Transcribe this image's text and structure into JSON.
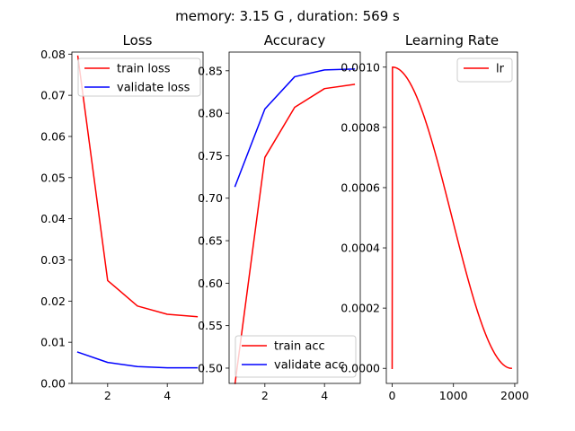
{
  "figure": {
    "suptitle": "memory: 3.15 G , duration: 569 s"
  },
  "chart_data": [
    {
      "type": "line",
      "title": "Loss",
      "xlabel": "",
      "ylabel": "",
      "xlim": [
        0.8,
        5.2
      ],
      "ylim": [
        0.0,
        0.0805
      ],
      "xticks": [
        2,
        4
      ],
      "xtick_labels": [
        "2",
        "4"
      ],
      "yticks": [
        0.0,
        0.01,
        0.02,
        0.03,
        0.04,
        0.05,
        0.06,
        0.07,
        0.08
      ],
      "ytick_labels": [
        "0.00",
        "0.01",
        "0.02",
        "0.03",
        "0.04",
        "0.05",
        "0.06",
        "0.07",
        "0.08"
      ],
      "grid": false,
      "legend": "top-right",
      "series": [
        {
          "name": "train loss",
          "color": "#ff0000",
          "x": [
            1,
            2,
            3,
            4,
            5
          ],
          "y": [
            0.0795,
            0.025,
            0.0188,
            0.0168,
            0.0162
          ]
        },
        {
          "name": "validate loss",
          "color": "#0000ff",
          "x": [
            1,
            2,
            3,
            4,
            5
          ],
          "y": [
            0.0076,
            0.0051,
            0.0041,
            0.0038,
            0.0038
          ]
        }
      ]
    },
    {
      "type": "line",
      "title": "Accuracy",
      "xlabel": "",
      "ylabel": "",
      "xlim": [
        0.8,
        5.2
      ],
      "ylim": [
        0.482,
        0.872
      ],
      "xticks": [
        2,
        4
      ],
      "xtick_labels": [
        "2",
        "4"
      ],
      "yticks": [
        0.5,
        0.55,
        0.6,
        0.65,
        0.7,
        0.75,
        0.8,
        0.85
      ],
      "ytick_labels": [
        "0.50",
        "0.55",
        "0.60",
        "0.65",
        "0.70",
        "0.75",
        "0.80",
        "0.85"
      ],
      "grid": false,
      "legend": "bottom-right",
      "series": [
        {
          "name": "train acc",
          "color": "#ff0000",
          "x": [
            1,
            2,
            3,
            4,
            5
          ],
          "y": [
            0.482,
            0.748,
            0.807,
            0.829,
            0.834
          ]
        },
        {
          "name": "validate acc",
          "color": "#0000ff",
          "x": [
            1,
            2,
            3,
            4,
            5
          ],
          "y": [
            0.714,
            0.805,
            0.843,
            0.851,
            0.852
          ]
        }
      ]
    },
    {
      "type": "line",
      "title": "Learning Rate",
      "xlabel": "",
      "ylabel": "",
      "xlim": [
        -95,
        2045
      ],
      "ylim": [
        -5e-05,
        0.00105
      ],
      "xticks": [
        0,
        1000,
        2000
      ],
      "xtick_labels": [
        "0",
        "1000",
        "2000"
      ],
      "yticks": [
        0.0,
        0.0002,
        0.0004,
        0.0006,
        0.0008,
        0.001
      ],
      "ytick_labels": [
        "0.0000",
        "0.0002",
        "0.0004",
        "0.0006",
        "0.0008",
        "0.0010"
      ],
      "grid": false,
      "legend": "top-right",
      "series": [
        {
          "name": "lr",
          "color": "#ff0000",
          "warmup_steps": 5,
          "total_steps": 1950,
          "peak": 0.001
        }
      ]
    }
  ]
}
